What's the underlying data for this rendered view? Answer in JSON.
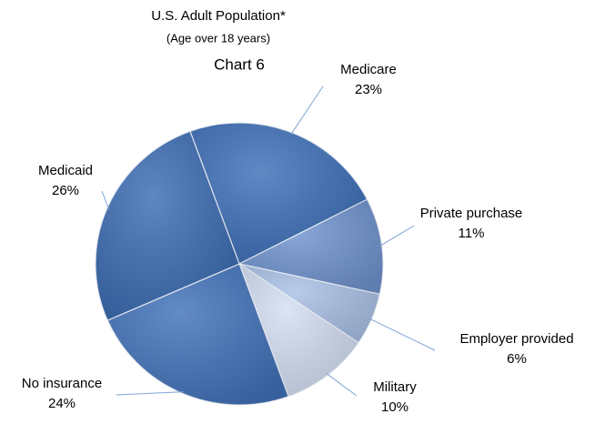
{
  "chart_data": {
    "type": "pie",
    "title": "U.S. Adult Population*",
    "subtitle": "(Age over 18 years)",
    "chart_label": "Chart  6",
    "categories": [
      "Medicare",
      "Private purchase",
      "Employer provided",
      "Military",
      "No insurance",
      "Medicaid"
    ],
    "values": [
      23,
      11,
      6,
      10,
      24,
      26
    ],
    "value_labels": [
      "23%",
      "11%",
      "6%",
      "10%",
      "24%",
      "26%"
    ],
    "colors": [
      "#3d6fb8",
      "#7093cf",
      "#a9c0e5",
      "#d3def1",
      "#4172ba",
      "#3b6cb3"
    ]
  }
}
